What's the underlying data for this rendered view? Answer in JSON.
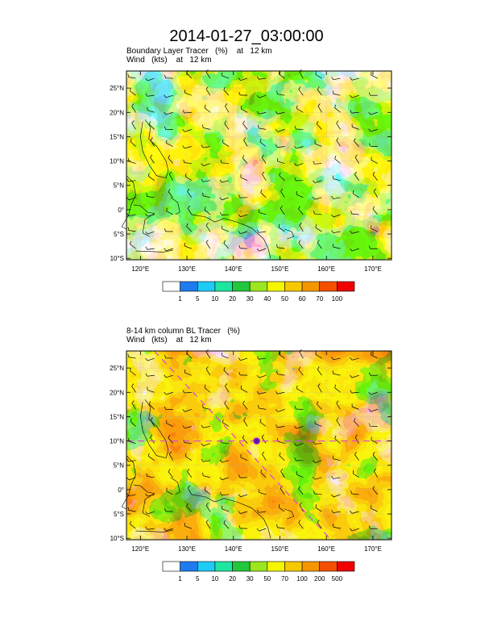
{
  "title": "2014-01-27_03:00:00",
  "panels": [
    {
      "title_line1": "Boundary Layer Tracer   (%)    at   12 km",
      "title_line2": "Wind   (kts)    at   12 km",
      "colorbar_labels": [
        "1",
        "5",
        "10",
        "20",
        "30",
        "40",
        "50",
        "60",
        "70",
        "100"
      ],
      "colorbar_colors": [
        "#ffffff",
        "#1e7bf0",
        "#1ecbf5",
        "#1ee6a0",
        "#22c73c",
        "#9be61e",
        "#f5f500",
        "#f5c800",
        "#f59600",
        "#f55000",
        "#f00000"
      ]
    },
    {
      "title_line1": "8-14 km column BL Tracer   (%)",
      "title_line2": "Wind   (kts)    at   12 km",
      "colorbar_labels": [
        "1",
        "5",
        "10",
        "20",
        "30",
        "50",
        "70",
        "100",
        "200",
        "500"
      ],
      "colorbar_colors": [
        "#ffffff",
        "#1e7bf0",
        "#1ecbf5",
        "#1ee6a0",
        "#22c73c",
        "#9be61e",
        "#f5f500",
        "#f5c800",
        "#f59600",
        "#f55000",
        "#f00000"
      ]
    }
  ],
  "axes": {
    "lon_labels": [
      "120°E",
      "130°E",
      "140°E",
      "150°E",
      "160°E",
      "170°E"
    ],
    "lon_values": [
      120,
      130,
      140,
      150,
      160,
      170
    ],
    "lat_labels": [
      "25°N",
      "20°N",
      "15°N",
      "10°N",
      "5°N",
      "0°",
      "5°S",
      "10°S"
    ],
    "lat_values": [
      25,
      20,
      15,
      10,
      5,
      0,
      -5,
      -10
    ],
    "lon_range": [
      117,
      174
    ],
    "lat_range": [
      -10.3,
      28.5
    ]
  },
  "storm_marker": {
    "lon": 145,
    "lat": 10
  }
}
